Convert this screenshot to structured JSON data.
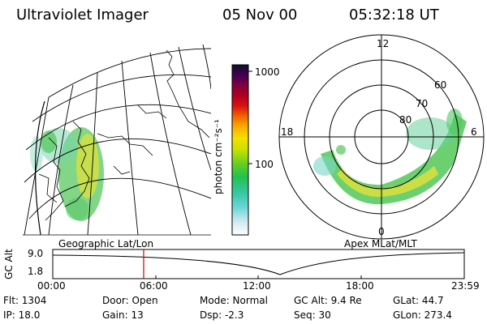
{
  "header": {
    "instrument": "Ultraviolet Imager",
    "date": "05 Nov 00",
    "time": "05:32:18 UT"
  },
  "colorbar": {
    "unit_label": "photon cm⁻²s⁻¹",
    "tick_labels": [
      "1000",
      "100"
    ]
  },
  "geo_panel": {
    "label": "Geographic Lat/Lon"
  },
  "polar_panel": {
    "label": "Apex MLat/MLT",
    "mlt_labels": [
      "12",
      "18",
      "6",
      "0"
    ],
    "mlat_labels": [
      "60",
      "70",
      "80"
    ]
  },
  "altitude_plot": {
    "ylabel": "GC Alt",
    "y_ticks": [
      "9.0",
      "1.8"
    ],
    "x_ticks": [
      "00:00",
      "06:00",
      "12:00",
      "18:00",
      "23:59"
    ],
    "marker_color": "#cc0000"
  },
  "status": {
    "flt": "Flt: 1304",
    "door": "Door: Open",
    "mode": "Mode: Normal",
    "gc_alt": "GC Alt: 9.4 Re",
    "glat": "GLat:  44.7",
    "ip": "IP: 18.0",
    "gain": "Gain: 13",
    "dsp": "Dsp:    -2.3",
    "seq": "Seq: 30",
    "glon": "GLon: 273.4"
  }
}
